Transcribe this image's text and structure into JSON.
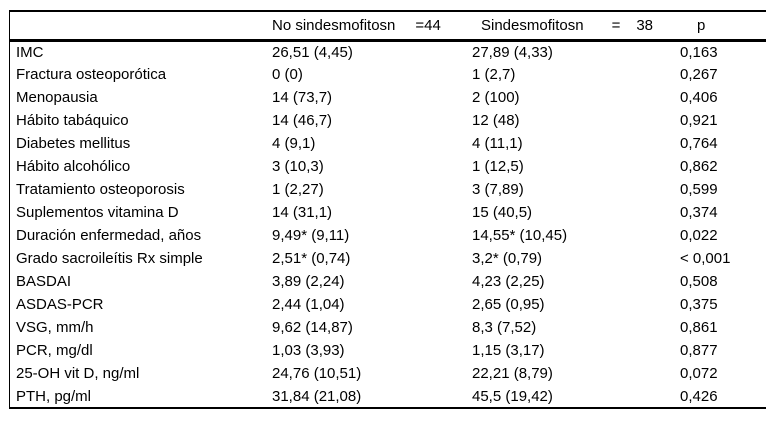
{
  "colors": {
    "background": "#ffffff",
    "text": "#000000",
    "border": "#000000"
  },
  "table": {
    "header": {
      "group1_label": "No sindesmofitosn",
      "group1_n": "=44",
      "group2_label": "Sindesmofitosn",
      "group2_eq": "=",
      "group2_n": "38",
      "p_label": "p"
    },
    "rows": [
      {
        "label": "IMC",
        "no_sind": "26,51 (4,45)",
        "sind": "27,89 (4,33)",
        "p": "0,163"
      },
      {
        "label": "Fractura osteoporótica",
        "no_sind": "0 (0)",
        "sind": "1 (2,7)",
        "p": "0,267"
      },
      {
        "label": "Menopausia",
        "no_sind": "14 (73,7)",
        "sind": "2 (100)",
        "p": "0,406"
      },
      {
        "label": "Hábito tabáquico",
        "no_sind": "14 (46,7)",
        "sind": "12 (48)",
        "p": "0,921"
      },
      {
        "label": "Diabetes mellitus",
        "no_sind": "4 (9,1)",
        "sind": "4 (11,1)",
        "p": "0,764"
      },
      {
        "label": "Hábito alcohólico",
        "no_sind": "3 (10,3)",
        "sind": "1 (12,5)",
        "p": "0,862"
      },
      {
        "label": "Tratamiento osteoporosis",
        "no_sind": "1 (2,27)",
        "sind": "3 (7,89)",
        "p": "0,599"
      },
      {
        "label": "Suplementos vitamina D",
        "no_sind": "14 (31,1)",
        "sind": "15 (40,5)",
        "p": "0,374"
      },
      {
        "label": "Duración enfermedad, años",
        "no_sind": "9,49* (9,11)",
        "sind": "14,55* (10,45)",
        "p": "0,022"
      },
      {
        "label": "Grado sacroileítis Rx simple",
        "no_sind": "2,51* (0,74)",
        "sind": "3,2* (0,79)",
        "p": "< 0,001"
      },
      {
        "label": "BASDAI",
        "no_sind": "3,89 (2,24)",
        "sind": "4,23 (2,25)",
        "p": "0,508"
      },
      {
        "label": "ASDAS-PCR",
        "no_sind": "2,44 (1,04)",
        "sind": "2,65 (0,95)",
        "p": "0,375"
      },
      {
        "label": "VSG, mm/h",
        "no_sind": "9,62 (14,87)",
        "sind": "8,3 (7,52)",
        "p": "0,861"
      },
      {
        "label": "PCR, mg/dl",
        "no_sind": "1,03 (3,93)",
        "sind": "1,15 (3,17)",
        "p": "0,877"
      },
      {
        "label": "25-OH vit D, ng/ml",
        "no_sind": "24,76 (10,51)",
        "sind": "22,21 (8,79)",
        "p": "0,072"
      },
      {
        "label": "PTH, pg/ml",
        "no_sind": "31,84 (21,08)",
        "sind": "45,5 (19,42)",
        "p": "0,426"
      }
    ]
  }
}
